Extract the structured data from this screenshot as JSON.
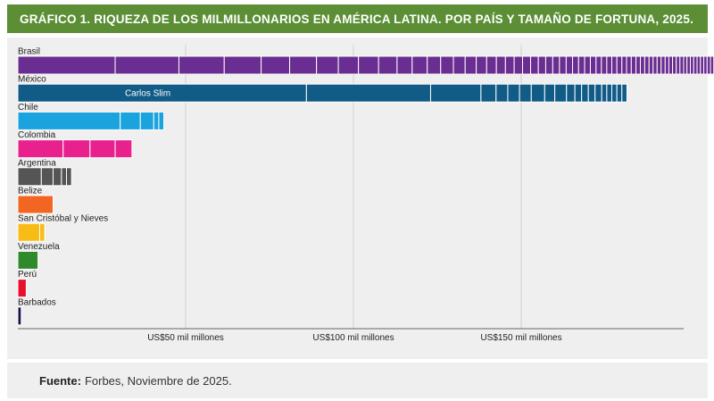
{
  "title": "GRÁFICO 1. RIQUEZA DE LOS MILMILLONARIOS EN AMÉRICA LATINA. POR PAÍS Y TAMAÑO DE FORTUNA, 2025.",
  "source": {
    "label": "Fuente:",
    "text": "Forbes, Noviembre de 2025."
  },
  "chart_data": {
    "type": "bar",
    "orientation": "horizontal",
    "stacked": true,
    "unit": "US$ mil millones",
    "xlim": [
      0,
      200
    ],
    "grid": true,
    "xticks": [
      {
        "value": 50,
        "label": "US$50 mil millones"
      },
      {
        "value": 100,
        "label": "US$100 mil millones"
      },
      {
        "value": 150,
        "label": "US$150 mil millones"
      }
    ],
    "annotations": [
      {
        "category": "México",
        "segment": 0,
        "text": "Carlos Slim"
      }
    ],
    "categories": [
      {
        "name": "Brasil",
        "color": "#6a2d91",
        "segments": [
          29,
          19,
          13.5,
          11,
          8.5,
          8,
          6.5,
          6,
          6,
          5.5,
          4.5,
          4.5,
          4,
          3.8,
          3.5,
          3.3,
          3.1,
          2.9,
          2.7,
          2.6,
          2.5,
          2.4,
          2.3,
          2.2,
          2.1,
          2,
          2,
          1.9,
          1.8,
          1.8,
          1.7,
          1.7,
          1.6,
          1.6,
          1.5,
          1.5,
          1.5,
          1.4,
          1.4,
          1.4,
          1.3,
          1.3,
          1.3,
          1.2,
          1.2,
          1.2,
          1.2,
          1.1,
          1.1,
          1.1,
          1.1,
          1.1,
          1,
          1,
          1,
          1,
          1,
          1,
          1,
          1,
          1,
          1
        ]
      },
      {
        "name": "México",
        "color": "#115b87",
        "segments": [
          86,
          37,
          15,
          4.5,
          3.5,
          3.5,
          3.5,
          4,
          3,
          3.5,
          2.5,
          2,
          2,
          2,
          2,
          1.5,
          1.5,
          1.5,
          1.5,
          1.5
        ]
      },
      {
        "name": "Chile",
        "color": "#1ba3de",
        "segments": [
          30.5,
          6,
          4,
          1.5,
          1.5
        ]
      },
      {
        "name": "Colombia",
        "color": "#e8218c",
        "segments": [
          13.5,
          8,
          7.5,
          5
        ]
      },
      {
        "name": "Argentina",
        "color": "#555555",
        "segments": [
          7,
          3.5,
          2.5,
          1.5,
          1.5
        ]
      },
      {
        "name": "Belize",
        "color": "#f26522",
        "segments": [
          10.5
        ]
      },
      {
        "name": "San Cristóbal y Nieves",
        "color": "#f7bc16",
        "segments": [
          6.5,
          1.5
        ]
      },
      {
        "name": "Venezuela",
        "color": "#2f8a2b",
        "segments": [
          6
        ]
      },
      {
        "name": "Perú",
        "color": "#e8112d",
        "segments": [
          2.5
        ]
      },
      {
        "name": "Barbados",
        "color": "#1a1245",
        "segments": [
          1
        ]
      }
    ]
  }
}
